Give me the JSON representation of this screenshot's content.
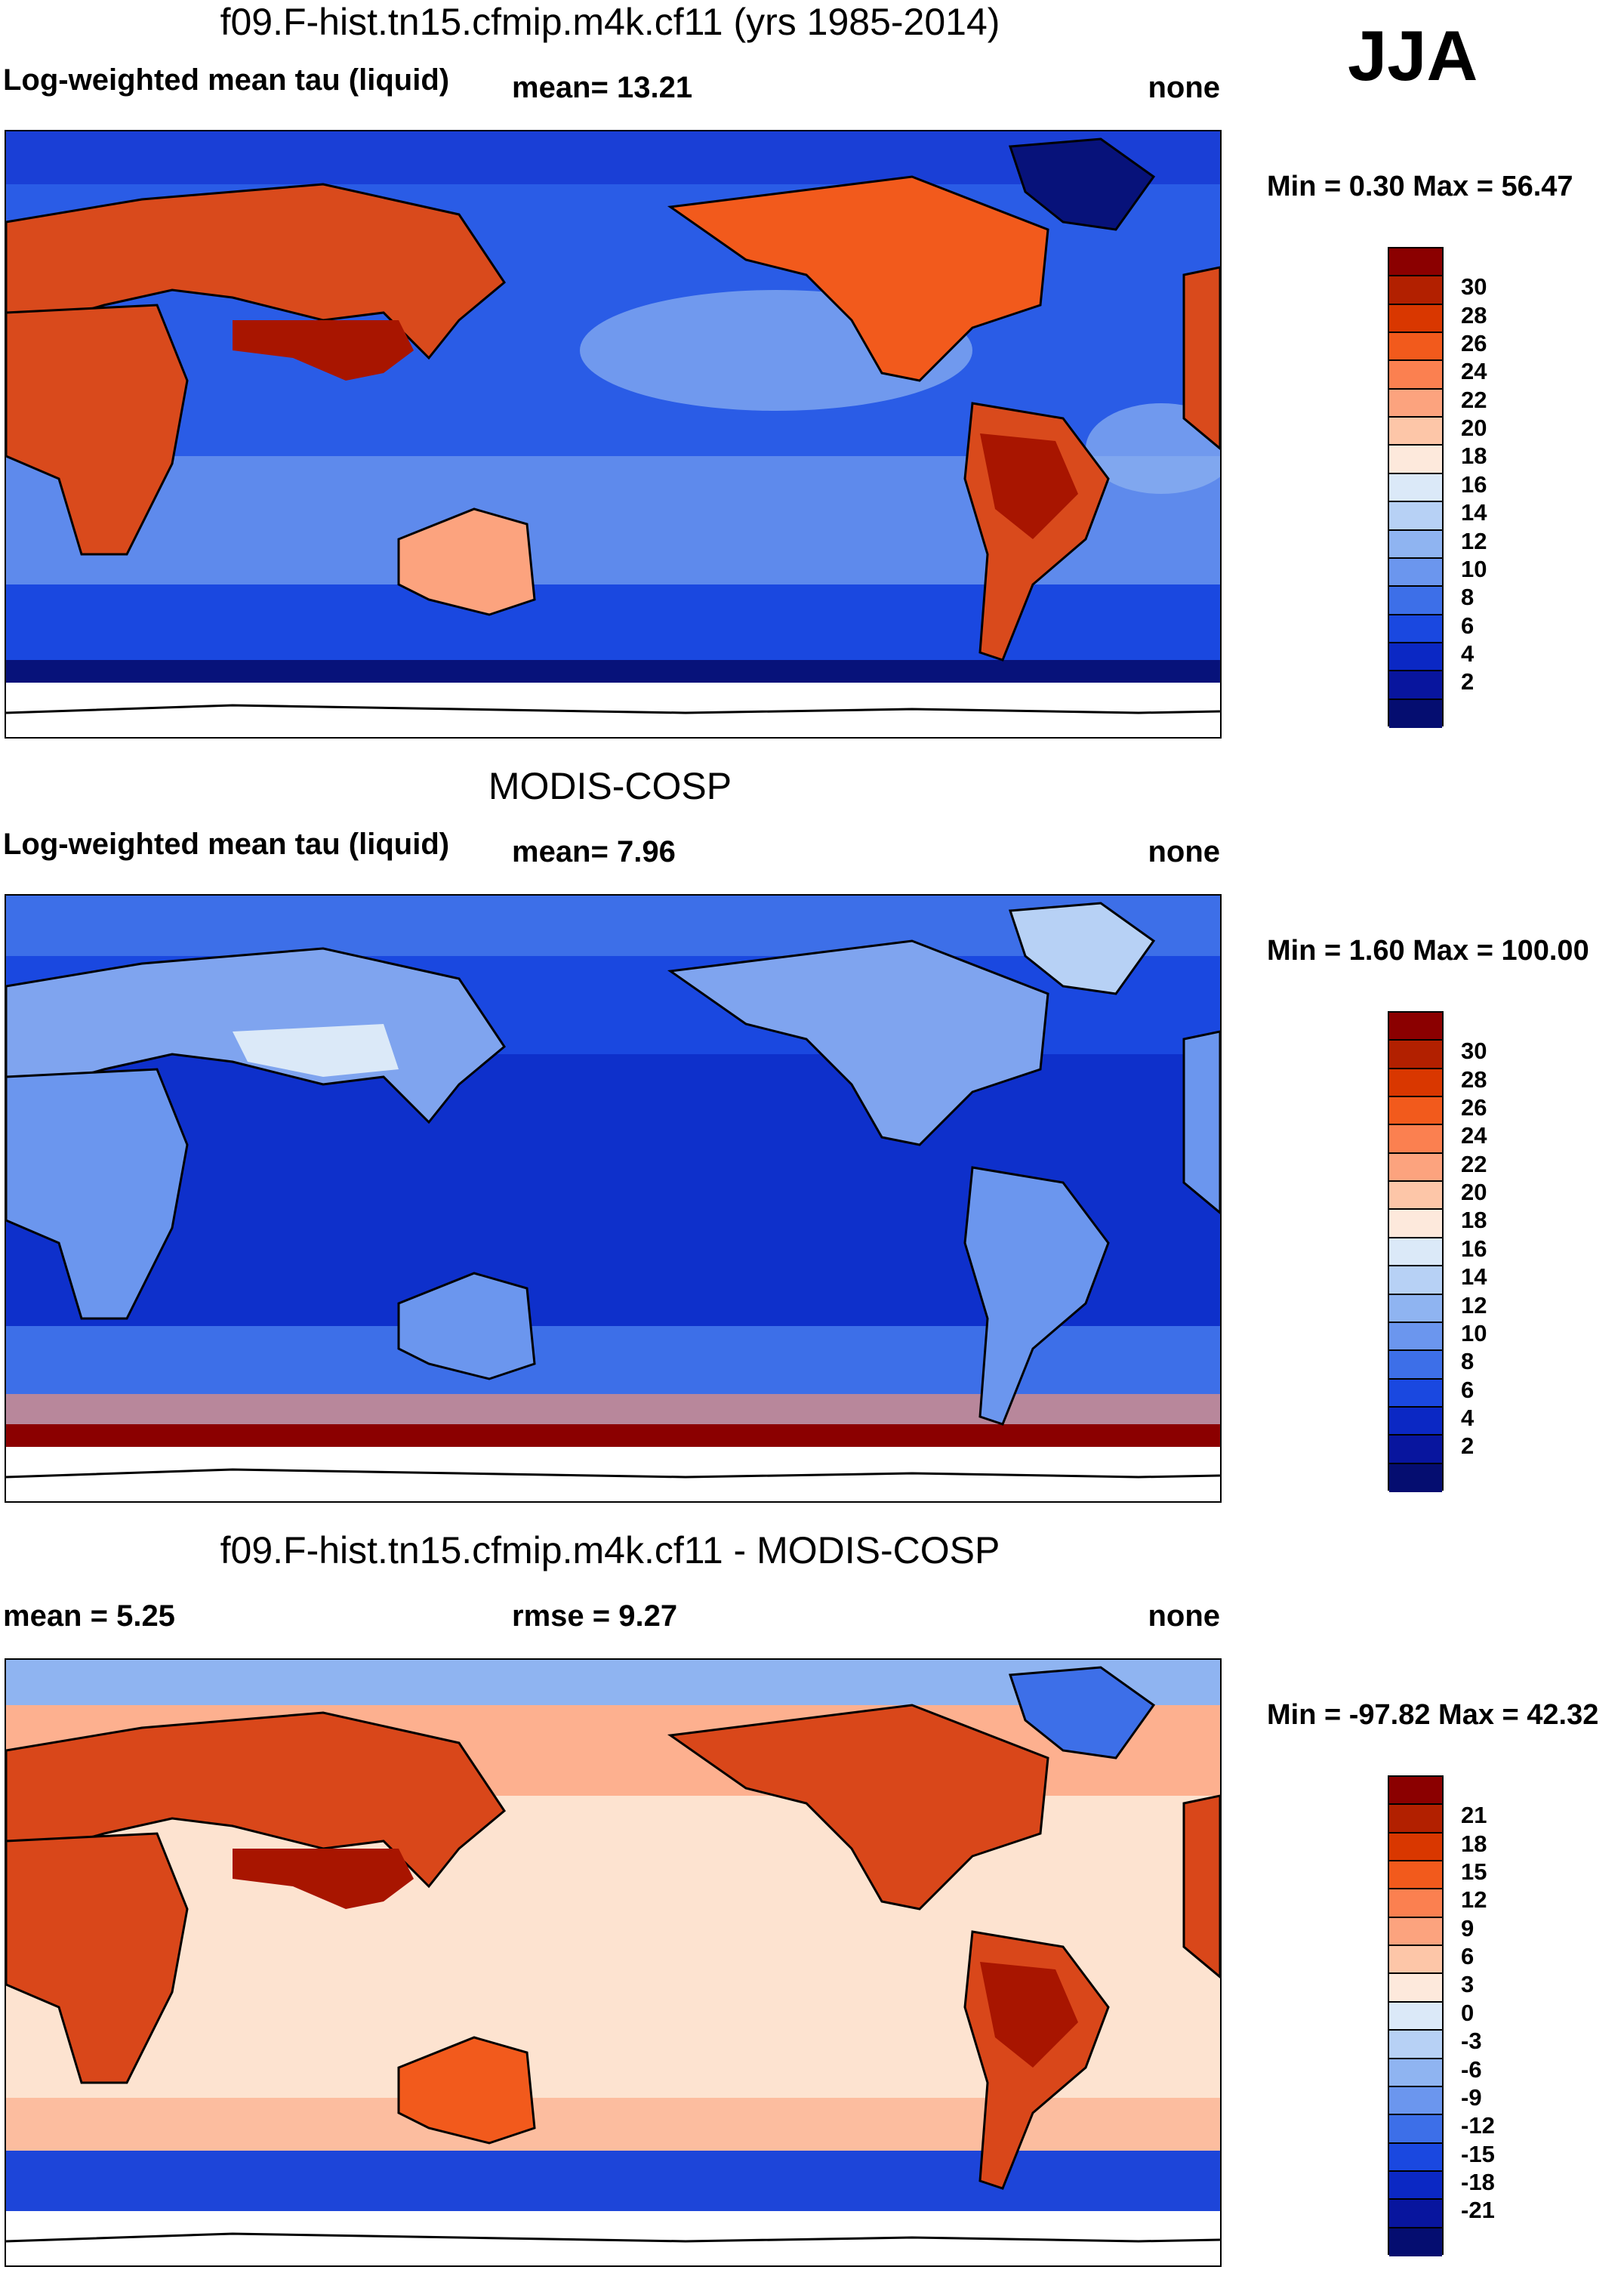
{
  "season": "JJA",
  "panels": [
    {
      "id": "model",
      "title": "f09.F-hist.tn15.cfmip.m4k.cf11 (yrs 1985-2014)",
      "left_label": "Log-weighted mean tau (liquid)",
      "stat1": "mean=  13.21",
      "stat2": "",
      "units": "none",
      "minmax": "Min =   0.30 Max =  56.47",
      "colorbar": {
        "colors": [
          "#8b0000",
          "#b22000",
          "#d93700",
          "#f25a1c",
          "#fb8050",
          "#fca37e",
          "#fdc6a8",
          "#fde9dc",
          "#dbe9f8",
          "#b7d1f5",
          "#8fb4f1",
          "#6b96ee",
          "#3d6fe8",
          "#1a48e0",
          "#0b28c4",
          "#08159e",
          "#050d70"
        ],
        "labels": [
          "30",
          "28",
          "26",
          "24",
          "22",
          "20",
          "18",
          "16",
          "14",
          "12",
          "10",
          "8",
          "6",
          "4",
          "2"
        ]
      }
    },
    {
      "id": "obs",
      "title": "MODIS-COSP",
      "left_label": "Log-weighted mean tau (liquid)",
      "stat1": "mean=   7.96",
      "stat2": "",
      "units": "none",
      "minmax": "Min =   1.60 Max = 100.00",
      "colorbar": {
        "colors": [
          "#8b0000",
          "#b22000",
          "#d93700",
          "#f25a1c",
          "#fb8050",
          "#fca37e",
          "#fdc6a8",
          "#fde9dc",
          "#dbe9f8",
          "#b7d1f5",
          "#8fb4f1",
          "#6b96ee",
          "#3d6fe8",
          "#1a48e0",
          "#0b28c4",
          "#08159e",
          "#050d70"
        ],
        "labels": [
          "30",
          "28",
          "26",
          "24",
          "22",
          "20",
          "18",
          "16",
          "14",
          "12",
          "10",
          "8",
          "6",
          "4",
          "2"
        ]
      }
    },
    {
      "id": "diff",
      "title": "f09.F-hist.tn15.cfmip.m4k.cf11 - MODIS-COSP",
      "left_label": "mean =    5.25",
      "stat1": "rmse =    9.27",
      "stat2": "",
      "units": "none",
      "minmax": "Min = -97.82 Max =  42.32",
      "colorbar": {
        "colors": [
          "#8b0000",
          "#b22000",
          "#d93700",
          "#f25a1c",
          "#fb8050",
          "#fca37e",
          "#fdc6a8",
          "#fde9dc",
          "#dbe9f8",
          "#b7d1f5",
          "#8fb4f1",
          "#6b96ee",
          "#3d6fe8",
          "#1a48e0",
          "#0b28c4",
          "#08159e",
          "#050d70"
        ],
        "labels": [
          "21",
          "18",
          "15",
          "12",
          "9",
          "6",
          "3",
          "0",
          "-3",
          "-6",
          "-9",
          "-12",
          "-15",
          "-18",
          "-21"
        ]
      }
    }
  ],
  "map_colors": {
    "ocean_mid": "#2a5ce6",
    "ocean_deep": "#1a3fd6",
    "land_hot": "#d94a1c",
    "land_max": "#a81500",
    "antarctic_edge": "#07127a",
    "obs_land": "#7fa4ef",
    "diff_ocean": "#fde3d0",
    "diff_land": "#d9471a",
    "diff_south": "#1d45d9"
  }
}
